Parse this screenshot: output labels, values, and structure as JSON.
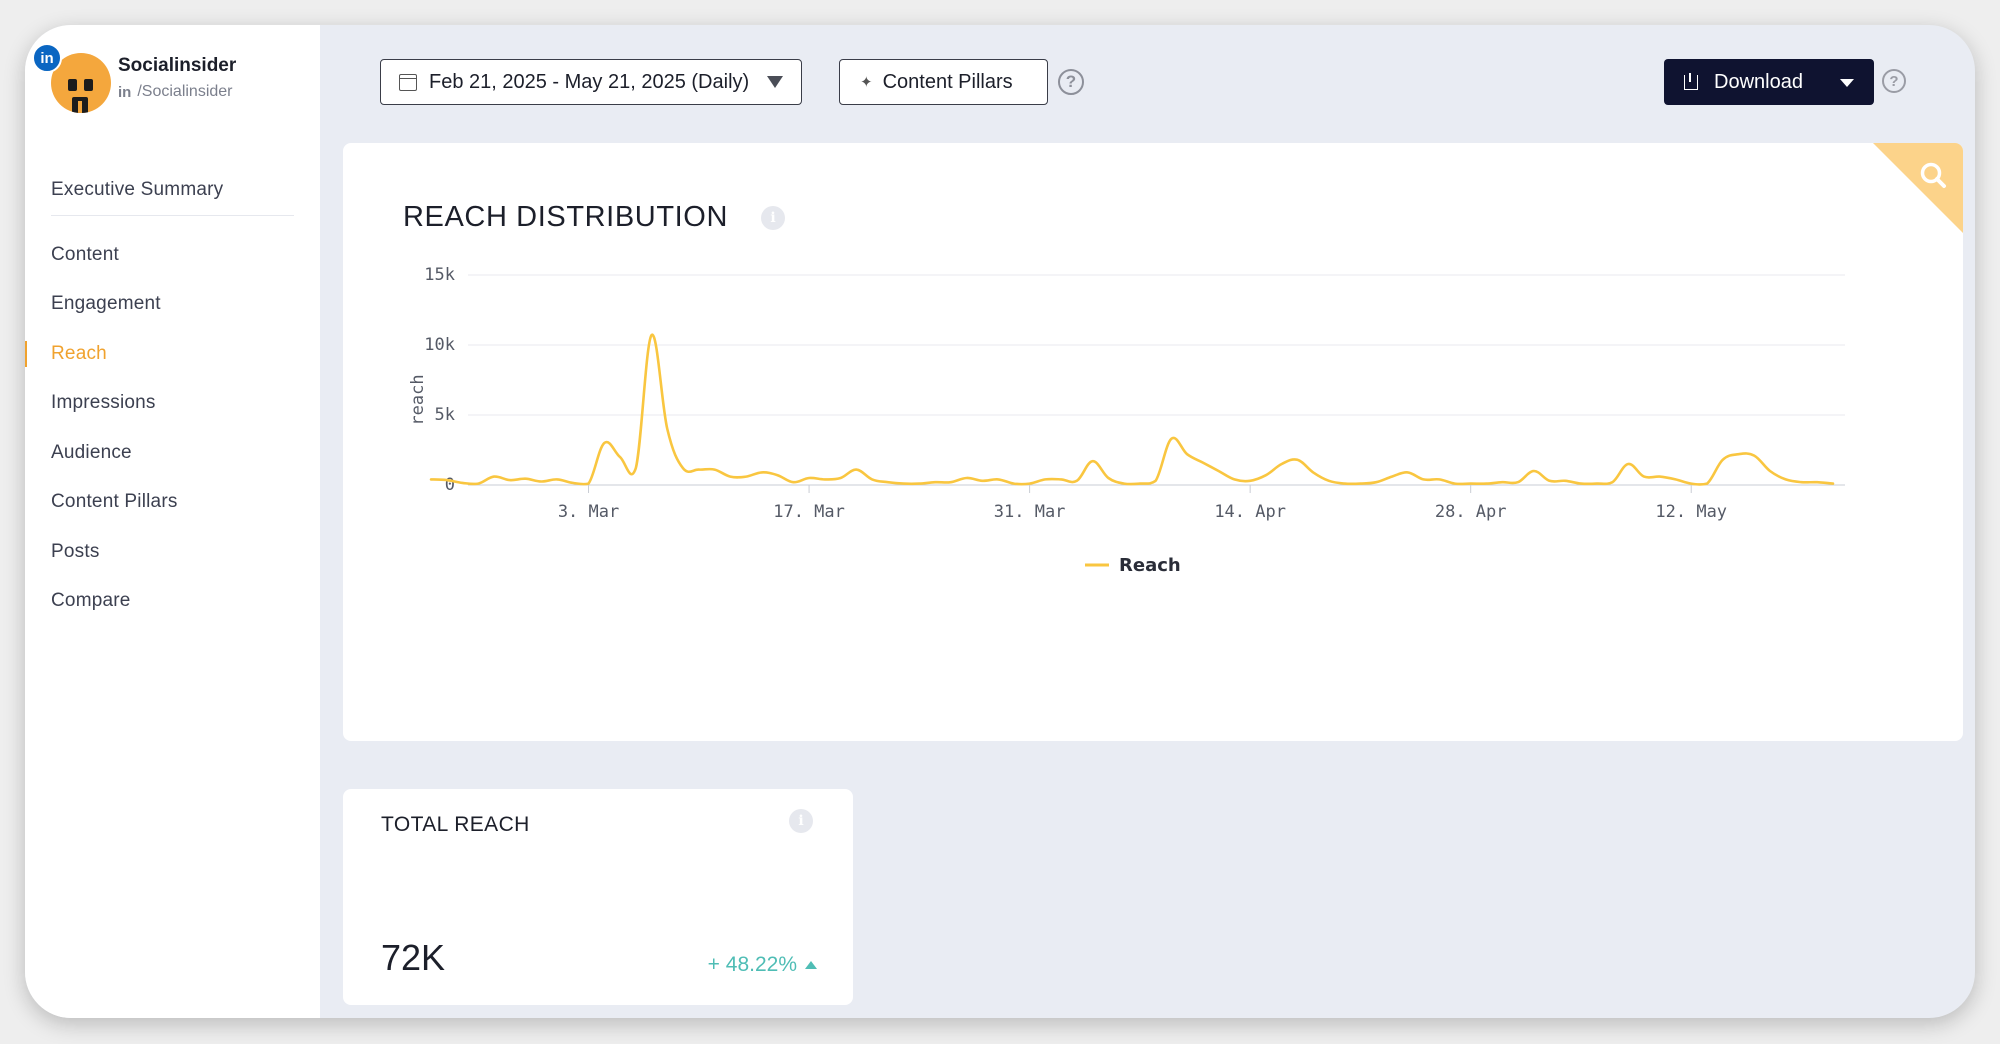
{
  "brand": {
    "name": "Socialinsider",
    "network_badge": "in",
    "handle_network": "in",
    "handle": "/Socialinsider"
  },
  "sidebar": {
    "items": [
      {
        "label": "Executive Summary",
        "active": false
      },
      {
        "label": "Content",
        "active": false
      },
      {
        "label": "Engagement",
        "active": false
      },
      {
        "label": "Reach",
        "active": true
      },
      {
        "label": "Impressions",
        "active": false
      },
      {
        "label": "Audience",
        "active": false
      },
      {
        "label": "Content Pillars",
        "active": false
      },
      {
        "label": "Posts",
        "active": false
      },
      {
        "label": "Compare",
        "active": false
      }
    ]
  },
  "toolbar": {
    "date_range": "Feb 21, 2025 - May 21, 2025 (Daily)",
    "content_pillars_label": "Content Pillars",
    "download_label": "Download",
    "help_glyph": "?"
  },
  "colors": {
    "accent": "#f0a22e",
    "series": "#f9c640",
    "positive": "#4fbdb5",
    "download_bg": "#0f1330"
  },
  "chart_card": {
    "title": "REACH DISTRIBUTION",
    "info_glyph": "i",
    "corner_icon": "search-icon"
  },
  "chart_data": {
    "type": "line",
    "title": "REACH DISTRIBUTION",
    "ylabel": "reach",
    "xlabel": "",
    "ylim": [
      0,
      15000
    ],
    "yticks": [
      0,
      5000,
      10000,
      15000
    ],
    "ytick_labels": [
      "0",
      "5k",
      "10k",
      "15k"
    ],
    "xtick_labels": [
      "3. Mar",
      "17. Mar",
      "31. Mar",
      "14. Apr",
      "28. Apr",
      "12. May"
    ],
    "xtick_dates": [
      "2025-03-03",
      "2025-03-17",
      "2025-03-31",
      "2025-04-14",
      "2025-04-28",
      "2025-05-12"
    ],
    "x_range": [
      "2025-02-21",
      "2025-05-21"
    ],
    "grid": true,
    "legend": "bottom-center",
    "series": [
      {
        "name": "Reach",
        "x": [
          "2025-02-21",
          "2025-02-22",
          "2025-02-23",
          "2025-02-24",
          "2025-02-25",
          "2025-02-26",
          "2025-02-27",
          "2025-02-28",
          "2025-03-01",
          "2025-03-02",
          "2025-03-03",
          "2025-03-04",
          "2025-03-05",
          "2025-03-06",
          "2025-03-07",
          "2025-03-08",
          "2025-03-09",
          "2025-03-10",
          "2025-03-11",
          "2025-03-12",
          "2025-03-13",
          "2025-03-14",
          "2025-03-15",
          "2025-03-16",
          "2025-03-17",
          "2025-03-18",
          "2025-03-19",
          "2025-03-20",
          "2025-03-21",
          "2025-03-22",
          "2025-03-23",
          "2025-03-24",
          "2025-03-25",
          "2025-03-26",
          "2025-03-27",
          "2025-03-28",
          "2025-03-29",
          "2025-03-30",
          "2025-03-31",
          "2025-04-01",
          "2025-04-02",
          "2025-04-03",
          "2025-04-04",
          "2025-04-05",
          "2025-04-06",
          "2025-04-07",
          "2025-04-08",
          "2025-04-09",
          "2025-04-10",
          "2025-04-11",
          "2025-04-12",
          "2025-04-13",
          "2025-04-14",
          "2025-04-15",
          "2025-04-16",
          "2025-04-17",
          "2025-04-18",
          "2025-04-19",
          "2025-04-20",
          "2025-04-21",
          "2025-04-22",
          "2025-04-23",
          "2025-04-24",
          "2025-04-25",
          "2025-04-26",
          "2025-04-27",
          "2025-04-28",
          "2025-04-29",
          "2025-04-30",
          "2025-05-01",
          "2025-05-02",
          "2025-05-03",
          "2025-05-04",
          "2025-05-05",
          "2025-05-06",
          "2025-05-07",
          "2025-05-08",
          "2025-05-09",
          "2025-05-10",
          "2025-05-11",
          "2025-05-12",
          "2025-05-13",
          "2025-05-14",
          "2025-05-15",
          "2025-05-16",
          "2025-05-17",
          "2025-05-18",
          "2025-05-19",
          "2025-05-20",
          "2025-05-21"
        ],
        "values": [
          400,
          350,
          150,
          100,
          600,
          350,
          450,
          250,
          400,
          150,
          100,
          3000,
          2000,
          1200,
          10700,
          4000,
          1200,
          1100,
          1100,
          600,
          600,
          900,
          700,
          200,
          500,
          400,
          500,
          1100,
          400,
          200,
          100,
          100,
          200,
          200,
          500,
          300,
          400,
          100,
          100,
          400,
          400,
          300,
          1700,
          500,
          100,
          100,
          300,
          3300,
          2200,
          1600,
          1000,
          400,
          300,
          700,
          1500,
          1800,
          900,
          300,
          100,
          100,
          200,
          600,
          900,
          400,
          400,
          100,
          100,
          100,
          200,
          200,
          1000,
          300,
          300,
          100,
          100,
          200,
          1500,
          600,
          600,
          400,
          100,
          100,
          1800,
          2200,
          2100,
          1000,
          400,
          200,
          200,
          100
        ]
      }
    ]
  },
  "total_reach": {
    "title": "TOTAL REACH",
    "info_glyph": "i",
    "value": "72K",
    "change": "+ 48.22%"
  }
}
